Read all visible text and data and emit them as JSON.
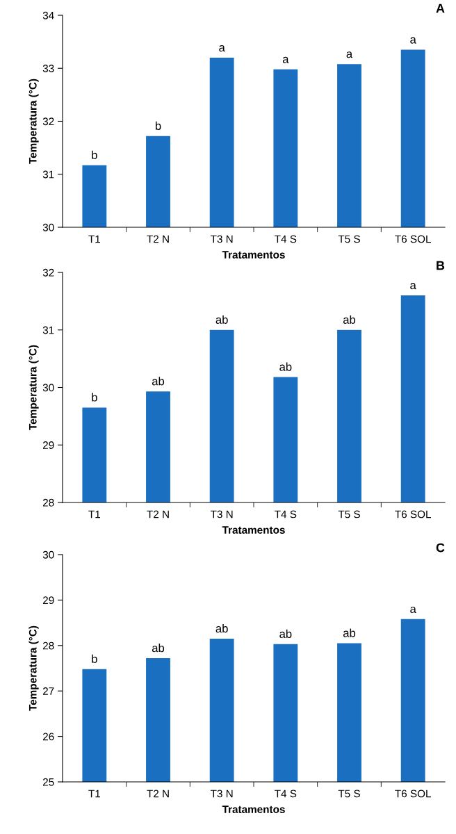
{
  "chart_data": [
    {
      "type": "bar",
      "title": "A",
      "xlabel": "Tratamentos",
      "ylabel": "Temperatura (°C)",
      "categories": [
        "T1",
        "T2 N",
        "T3 N",
        "T4 S",
        "T5 S",
        "T6 SOL"
      ],
      "values": [
        31.17,
        31.72,
        33.2,
        32.98,
        33.08,
        33.35
      ],
      "color": "#1a6fc0",
      "ylim": [
        30,
        34
      ],
      "yticks": [
        30,
        31,
        32,
        33,
        34
      ],
      "grid": false,
      "legend": false,
      "annotations": [
        {
          "text": "b",
          "x": "T1",
          "y": 31.17
        },
        {
          "text": "b",
          "x": "T2 N",
          "y": 31.72
        },
        {
          "text": "a",
          "x": "T3 N",
          "y": 33.2
        },
        {
          "text": "a",
          "x": "T4 S",
          "y": 32.98
        },
        {
          "text": "a",
          "x": "T5 S",
          "y": 33.08
        },
        {
          "text": "a",
          "x": "T6 SOL",
          "y": 33.35
        }
      ]
    },
    {
      "type": "bar",
      "title": "B",
      "xlabel": "Tratamentos",
      "ylabel": "Temperatura (°C)",
      "categories": [
        "T1",
        "T2 N",
        "T3 N",
        "T4 S",
        "T5 S",
        "T6 SOL"
      ],
      "values": [
        29.65,
        29.93,
        31.0,
        30.18,
        31.0,
        31.6
      ],
      "color": "#1a6fc0",
      "ylim": [
        28,
        32
      ],
      "yticks": [
        28,
        29,
        30,
        31,
        32
      ],
      "grid": false,
      "legend": false,
      "annotations": [
        {
          "text": "b",
          "x": "T1",
          "y": 29.65
        },
        {
          "text": "ab",
          "x": "T2 N",
          "y": 29.93
        },
        {
          "text": "ab",
          "x": "T3 N",
          "y": 31.0
        },
        {
          "text": "ab",
          "x": "T4 S",
          "y": 30.18
        },
        {
          "text": "ab",
          "x": "T5 S",
          "y": 31.0
        },
        {
          "text": "a",
          "x": "T6 SOL",
          "y": 31.6
        }
      ]
    },
    {
      "type": "bar",
      "title": "C",
      "xlabel": "Tratamentos",
      "ylabel": "Temperatura (°C)",
      "categories": [
        "T1",
        "T2 N",
        "T3 N",
        "T4 S",
        "T5 S",
        "T6 SOL"
      ],
      "values": [
        27.48,
        27.72,
        28.15,
        28.03,
        28.05,
        28.58
      ],
      "color": "#1a6fc0",
      "ylim": [
        25,
        30
      ],
      "yticks": [
        25,
        26,
        27,
        28,
        29,
        30
      ],
      "grid": false,
      "legend": false,
      "annotations": [
        {
          "text": "b",
          "x": "T1",
          "y": 27.48
        },
        {
          "text": "ab",
          "x": "T2 N",
          "y": 27.72
        },
        {
          "text": "ab",
          "x": "T3 N",
          "y": 28.15
        },
        {
          "text": "ab",
          "x": "T4 S",
          "y": 28.03
        },
        {
          "text": "ab",
          "x": "T5 S",
          "y": 28.05
        },
        {
          "text": "a",
          "x": "T6 SOL",
          "y": 28.58
        }
      ]
    }
  ]
}
